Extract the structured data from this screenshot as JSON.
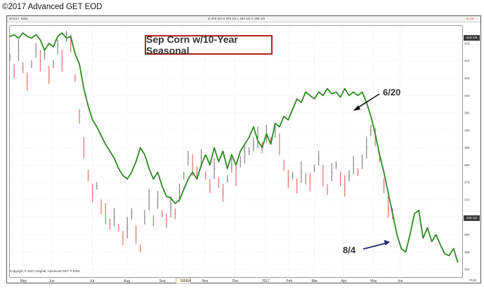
{
  "header": {
    "title": "©2017 Advanced GET EOD"
  },
  "frame": {
    "symbol": "ZCU17, Daily",
    "ohlc": "O 370 3/4  H 372 1/2  L 364 1/2  C 365 1/2",
    "corner_value": "-5 1/4",
    "copyright": "Copyright © 2017 eSignal, Advanced GET ® EOD",
    "bottom_right": "#120",
    "price_tag_top": "419 1/8",
    "price_tag_last": "365 1/2"
  },
  "chart_data": {
    "type": "line",
    "title": "Sep Corn w/10-Year Seasonal",
    "ylim": [
      348,
      420
    ],
    "xlim": [
      0,
      100
    ],
    "y_ticks": [
      350,
      355,
      360,
      365,
      370,
      375,
      380,
      385,
      390,
      395,
      400,
      405,
      410,
      415
    ],
    "x_tick_labels": [
      {
        "label": "May",
        "x": 3.0
      },
      {
        "label": "Jun",
        "x": 9.6
      },
      {
        "label": "Jul",
        "x": 19.0
      },
      {
        "label": "Aug",
        "x": 26.8
      },
      {
        "label": "Sep",
        "x": 35.0
      },
      {
        "label": "1666/4",
        "x": 39.8
      },
      {
        "label": "Nov",
        "x": 44.8
      },
      {
        "label": "Dec",
        "x": 51.8
      },
      {
        "label": "2017",
        "x": 58.6
      },
      {
        "label": "Feb",
        "x": 64.2
      },
      {
        "label": "Mar",
        "x": 70.0
      },
      {
        "label": "Apr",
        "x": 76.8
      },
      {
        "label": "May",
        "x": 83.5
      },
      {
        "label": "Jun",
        "x": 89.7
      }
    ],
    "selected_x_label": "1666/4",
    "annotations": [
      {
        "text": "6/20",
        "x": 89.5,
        "y": 394.5
      },
      {
        "text": "8/4",
        "x": 96.0,
        "y": 355.0
      }
    ],
    "series": [
      {
        "kind": "seasonal",
        "color": "#2a8a1e",
        "points": [
          [
            0,
            417
          ],
          [
            1,
            417.5
          ],
          [
            2,
            416.5
          ],
          [
            3,
            418
          ],
          [
            4,
            417
          ],
          [
            5,
            416.5
          ],
          [
            6,
            417.5
          ],
          [
            7,
            416
          ],
          [
            8,
            413
          ],
          [
            9,
            415
          ],
          [
            10,
            414
          ],
          [
            11,
            417
          ],
          [
            12,
            418
          ],
          [
            13,
            416.5
          ],
          [
            14,
            417
          ],
          [
            15,
            412
          ],
          [
            16,
            409
          ],
          [
            17,
            402
          ],
          [
            18,
            397
          ],
          [
            19,
            393
          ],
          [
            20,
            391
          ],
          [
            21,
            388.5
          ],
          [
            22,
            386
          ],
          [
            23,
            384
          ],
          [
            24,
            382
          ],
          [
            25,
            379
          ],
          [
            26,
            377
          ],
          [
            27,
            376
          ],
          [
            28,
            378
          ],
          [
            29,
            381
          ],
          [
            30,
            385
          ],
          [
            31,
            383
          ],
          [
            32,
            379
          ],
          [
            33,
            376
          ],
          [
            34,
            378
          ],
          [
            35,
            374
          ],
          [
            36,
            371
          ],
          [
            37,
            370.5
          ],
          [
            38,
            369
          ],
          [
            39,
            370
          ],
          [
            40,
            373
          ],
          [
            41,
            376
          ],
          [
            42,
            378
          ],
          [
            43,
            376
          ],
          [
            44,
            380
          ],
          [
            45,
            383
          ],
          [
            46,
            380
          ],
          [
            47,
            385
          ],
          [
            48,
            381
          ],
          [
            49,
            384
          ],
          [
            50,
            379
          ],
          [
            51,
            383
          ],
          [
            52,
            380
          ],
          [
            53,
            384
          ],
          [
            54,
            386
          ],
          [
            55,
            388
          ],
          [
            56,
            391
          ],
          [
            57,
            387
          ],
          [
            58,
            385
          ],
          [
            59,
            389
          ],
          [
            60,
            386
          ],
          [
            61,
            392
          ],
          [
            62,
            391
          ],
          [
            63,
            394
          ],
          [
            64,
            393
          ],
          [
            65,
            396
          ],
          [
            66,
            399
          ],
          [
            67,
            398
          ],
          [
            68,
            401
          ],
          [
            69,
            400
          ],
          [
            70,
            399
          ],
          [
            71,
            401
          ],
          [
            72,
            400
          ],
          [
            73,
            402
          ],
          [
            74,
            400.5
          ],
          [
            75,
            401
          ],
          [
            76,
            399.5
          ],
          [
            77,
            402
          ],
          [
            78,
            400
          ],
          [
            79,
            401
          ],
          [
            80,
            400
          ],
          [
            81,
            401
          ],
          [
            82,
            398
          ],
          [
            83,
            394
          ],
          [
            84,
            389
          ],
          [
            85,
            383
          ],
          [
            86,
            378
          ],
          [
            87,
            372
          ],
          [
            88,
            366
          ],
          [
            89,
            360
          ],
          [
            90,
            356
          ],
          [
            91,
            355
          ],
          [
            92,
            360
          ],
          [
            93,
            366
          ],
          [
            94,
            367
          ],
          [
            95,
            359
          ],
          [
            96,
            362
          ],
          [
            97,
            358
          ],
          [
            98,
            360
          ],
          [
            99,
            357
          ],
          [
            100,
            354.5
          ],
          [
            101,
            354
          ],
          [
            102,
            356
          ],
          [
            103,
            352
          ]
        ]
      },
      {
        "kind": "price-close",
        "color": "#777777",
        "down_color": "#e06060",
        "points": [
          [
            0,
            411
          ],
          [
            1,
            407
          ],
          [
            2,
            413
          ],
          [
            3,
            408
          ],
          [
            4,
            404
          ],
          [
            5,
            409
          ],
          [
            6,
            413
          ],
          [
            7,
            410
          ],
          [
            8,
            412
          ],
          [
            9,
            406
          ],
          [
            10,
            409
          ],
          [
            11,
            414
          ],
          [
            12,
            410
          ],
          [
            13,
            417
          ],
          [
            14,
            415
          ],
          [
            15,
            405
          ],
          [
            16,
            394
          ],
          [
            17,
            385
          ],
          [
            18,
            377
          ],
          [
            19,
            372
          ],
          [
            20,
            374
          ],
          [
            21,
            368
          ],
          [
            22,
            366
          ],
          [
            23,
            363
          ],
          [
            24,
            365
          ],
          [
            25,
            362
          ],
          [
            26,
            359
          ],
          [
            27,
            362
          ],
          [
            28,
            366
          ],
          [
            29,
            360
          ],
          [
            30,
            356
          ],
          [
            31,
            365
          ],
          [
            32,
            370
          ],
          [
            33,
            364
          ],
          [
            34,
            370
          ],
          [
            35,
            366
          ],
          [
            36,
            364
          ],
          [
            37,
            368
          ],
          [
            38,
            366
          ],
          [
            39,
            372
          ],
          [
            40,
            377
          ],
          [
            41,
            382
          ],
          [
            42,
            380
          ],
          [
            43,
            378
          ],
          [
            44,
            382
          ],
          [
            45,
            377
          ],
          [
            46,
            374
          ],
          [
            47,
            379
          ],
          [
            48,
            375
          ],
          [
            49,
            372
          ],
          [
            50,
            376
          ],
          [
            51,
            380
          ],
          [
            52,
            377
          ],
          [
            53,
            381
          ],
          [
            54,
            383
          ],
          [
            55,
            384
          ],
          [
            56,
            386
          ],
          [
            57,
            388
          ],
          [
            58,
            385
          ],
          [
            59,
            389
          ],
          [
            60,
            387
          ],
          [
            61,
            390
          ],
          [
            62,
            386
          ],
          [
            63,
            380
          ],
          [
            64,
            376
          ],
          [
            65,
            377
          ],
          [
            66,
            374
          ],
          [
            67,
            378
          ],
          [
            68,
            376
          ],
          [
            69,
            375
          ],
          [
            70,
            379
          ],
          [
            71,
            382
          ],
          [
            72,
            377
          ],
          [
            73,
            373
          ],
          [
            74,
            378
          ],
          [
            75,
            380
          ],
          [
            76,
            376
          ],
          [
            77,
            374
          ],
          [
            78,
            377
          ],
          [
            79,
            380
          ],
          [
            80,
            378
          ],
          [
            81,
            381
          ],
          [
            82,
            385
          ],
          [
            83,
            390
          ],
          [
            84,
            388
          ],
          [
            85,
            382
          ],
          [
            86,
            374
          ],
          [
            87,
            368
          ],
          [
            88,
            366
          ]
        ]
      }
    ]
  }
}
